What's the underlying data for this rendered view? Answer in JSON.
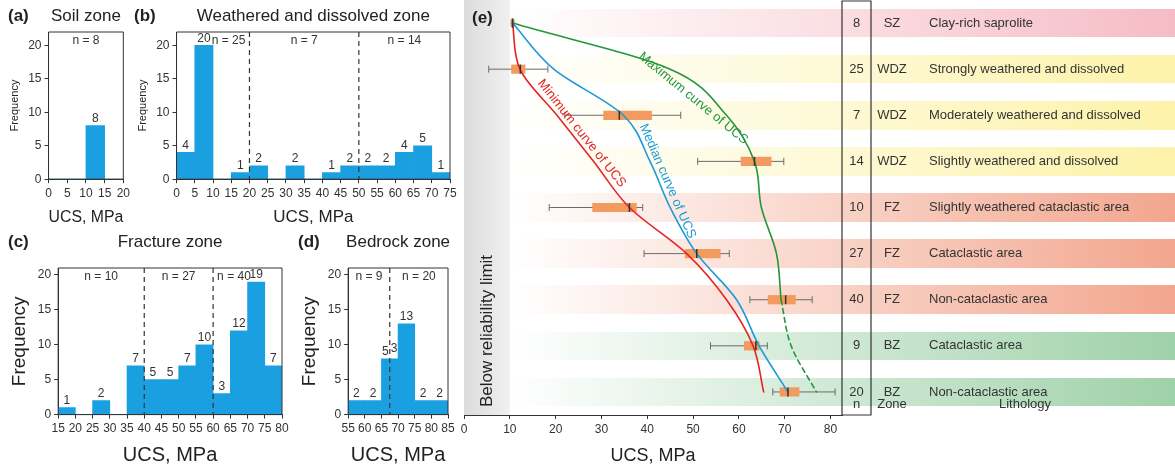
{
  "chart_data": [
    {
      "type": "histogram",
      "title": "Soil zone",
      "xlabel": "UCS, MPa",
      "ylabel": "Frequency",
      "color": "#1a9fe0",
      "bins": [
        0,
        5,
        10,
        15,
        20
      ],
      "values": [
        0,
        0,
        8,
        0
      ],
      "value_labels": [
        null,
        null,
        "8",
        null
      ],
      "xlim": [
        0,
        20
      ],
      "xticks": [
        0,
        5,
        10,
        15,
        20
      ],
      "ylim": [
        0,
        22
      ],
      "yticks": [
        0,
        5,
        10,
        15,
        20
      ],
      "annotations": [
        "(a)",
        "n = 8"
      ]
    },
    {
      "type": "histogram",
      "title": "Weathered and dissolved zone",
      "xlabel": "UCS, MPa",
      "ylabel": "Frequency",
      "color": "#1a9fe0",
      "bins": [
        0,
        5,
        10,
        15,
        20,
        25,
        30,
        35,
        40,
        45,
        50,
        55,
        60,
        65,
        70,
        75
      ],
      "values": [
        4,
        20,
        0,
        1,
        2,
        0,
        2,
        0,
        1,
        2,
        2,
        2,
        4,
        5,
        1
      ],
      "value_labels": [
        "4",
        "20",
        null,
        "1",
        "2",
        null,
        "2",
        null,
        "1",
        "2",
        "2",
        "2",
        "4",
        "5",
        "1"
      ],
      "xlim": [
        0,
        75
      ],
      "xticks": [
        0,
        5,
        10,
        15,
        20,
        25,
        30,
        35,
        40,
        45,
        50,
        55,
        60,
        65,
        70,
        75
      ],
      "ylim": [
        0,
        22
      ],
      "yticks": [
        0,
        5,
        10,
        15,
        20
      ],
      "ref_lines": [
        {
          "axis": "x",
          "value": 20,
          "color": "#333333",
          "line_style": "dashed"
        },
        {
          "axis": "x",
          "value": 50,
          "color": "#333333",
          "line_style": "dashed"
        }
      ],
      "annotations": [
        "(b)",
        "n = 25",
        "n = 7",
        "n = 14"
      ]
    },
    {
      "type": "histogram",
      "title": "Fracture zone",
      "xlabel": "UCS, MPa",
      "ylabel": "Frequency",
      "color": "#1a9fe0",
      "bins": [
        15,
        20,
        25,
        30,
        35,
        40,
        45,
        50,
        55,
        60,
        65,
        70,
        75,
        80
      ],
      "values": [
        1,
        0,
        2,
        0,
        7,
        5,
        5,
        7,
        10,
        3,
        12,
        19,
        7
      ],
      "value_labels": [
        "1",
        null,
        "2",
        null,
        "7",
        "5",
        "5",
        "7",
        "10",
        "3",
        "12",
        "19",
        "7"
      ],
      "xlim": [
        15,
        80
      ],
      "xticks": [
        15,
        20,
        25,
        30,
        35,
        40,
        45,
        50,
        55,
        60,
        65,
        70,
        75,
        80
      ],
      "ylim": [
        0,
        21
      ],
      "yticks": [
        0,
        5,
        10,
        15,
        20
      ],
      "ref_lines": [
        {
          "axis": "x",
          "value": 40,
          "color": "#333333",
          "line_style": "dashed"
        },
        {
          "axis": "x",
          "value": 60,
          "color": "#333333",
          "line_style": "dashed"
        }
      ],
      "annotations": [
        "(c)",
        "n = 10",
        "n = 27",
        "n = 40"
      ]
    },
    {
      "type": "histogram",
      "title": "Bedrock zone",
      "xlabel": "UCS, MPa",
      "ylabel": "Frequency",
      "color": "#1a9fe0",
      "bins": [
        55,
        60,
        65,
        70,
        75,
        80,
        85
      ],
      "values": [
        2,
        2,
        8,
        13,
        2,
        2
      ],
      "value_labels": [
        "2",
        "2",
        null,
        "13",
        "2",
        "2"
      ],
      "xlim": [
        55,
        85
      ],
      "xticks": [
        55,
        60,
        65,
        70,
        75,
        80,
        85
      ],
      "ylim": [
        0,
        21
      ],
      "yticks": [
        0,
        5,
        10,
        15,
        20
      ],
      "ref_lines": [
        {
          "axis": "x",
          "value": 67.5,
          "color": "#333333",
          "line_style": "dashed"
        }
      ],
      "annotations": [
        "(d)",
        "n = 9",
        "n = 20",
        {
          "text": "5",
          "x": 66.2,
          "y": 8.2
        },
        {
          "text": "3",
          "x": 68.8,
          "y": 8.6
        }
      ]
    },
    {
      "type": "box",
      "orientation": "horizontal",
      "xlabel": "UCS, MPa",
      "ylabel": "Lithology",
      "categories": [
        "Clay-rich saprolite",
        "Strongly weathered and dissolved",
        "Moderately weathered and dissolved",
        "Slightly weathered and dissolved",
        "Slightly weathered cataclastic area",
        "Cataclastic area",
        "Non-cataclastic area",
        "Cataclastic area",
        "Non-cataclastic area"
      ],
      "xlim": [
        0,
        82.5
      ],
      "xticks": [
        0,
        10,
        20,
        30,
        40,
        50,
        60,
        70,
        80
      ],
      "series": [
        {
          "type": "box",
          "color": "#f39a5e",
          "boxes": [
            {
              "low": 10.3,
              "q1": 10.3,
              "median": 10.6,
              "q3": 10.9,
              "high": 10.9
            },
            {
              "low": 5.4,
              "q1": 10.3,
              "median": 12.3,
              "q3": 13.4,
              "high": 18.3
            },
            {
              "low": 22.0,
              "q1": 30.4,
              "median": 33.9,
              "q3": 41.0,
              "high": 47.3
            },
            {
              "low": 51.0,
              "q1": 60.4,
              "median": 63.4,
              "q3": 67.1,
              "high": 69.8
            },
            {
              "low": 18.6,
              "q1": 28.0,
              "median": 36.1,
              "q3": 37.7,
              "high": 39.0
            },
            {
              "low": 39.3,
              "q1": 48.2,
              "median": 50.8,
              "q3": 56.0,
              "high": 57.9
            },
            {
              "low": 62.4,
              "q1": 66.3,
              "median": 70.2,
              "q3": 72.4,
              "high": 76.0
            },
            {
              "low": 53.8,
              "q1": 61.1,
              "median": 63.7,
              "q3": 64.5,
              "high": 66.2
            },
            {
              "low": 67.4,
              "q1": 68.9,
              "median": 70.7,
              "q3": 73.2,
              "high": 81.0
            }
          ]
        },
        {
          "type": "line",
          "name": "Minimum curve of UCS",
          "color": "#e52521",
          "values": [
            10.6,
            12.2,
            20.3,
            28.3,
            36.1,
            48.6,
            57.3,
            63.1,
            65.4
          ]
        },
        {
          "type": "line",
          "name": "Median curve of UCS",
          "color": "#1d9ad6",
          "values": [
            10.6,
            19.6,
            34.8,
            40.6,
            45.0,
            50.8,
            59.5,
            64.4,
            70.7
          ]
        },
        {
          "type": "line",
          "name": "Maximum curve of UCS",
          "color": "#23963c",
          "values": [
            10.6,
            45.0,
            57.3,
            63.4,
            64.9,
            68.2,
            69.2,
            null,
            null
          ]
        },
        {
          "type": "line",
          "color": "#23963c",
          "line_style": "dashed",
          "values": [
            null,
            null,
            null,
            null,
            null,
            null,
            69.2,
            71.4,
            76.9
          ]
        }
      ],
      "bands": [
        {
          "axis": "x",
          "from": 0,
          "to": 10,
          "label": "Below reliability limit",
          "color": "#dcdcdc"
        }
      ],
      "annotations": [
        "(e)",
        "n",
        "Zone",
        "8",
        "SZ",
        "25",
        "WDZ",
        "7",
        "WDZ",
        "14",
        "WDZ",
        "10",
        "FZ",
        "27",
        "FZ",
        "40",
        "FZ",
        "9",
        "BZ",
        "20",
        "BZ"
      ]
    }
  ]
}
